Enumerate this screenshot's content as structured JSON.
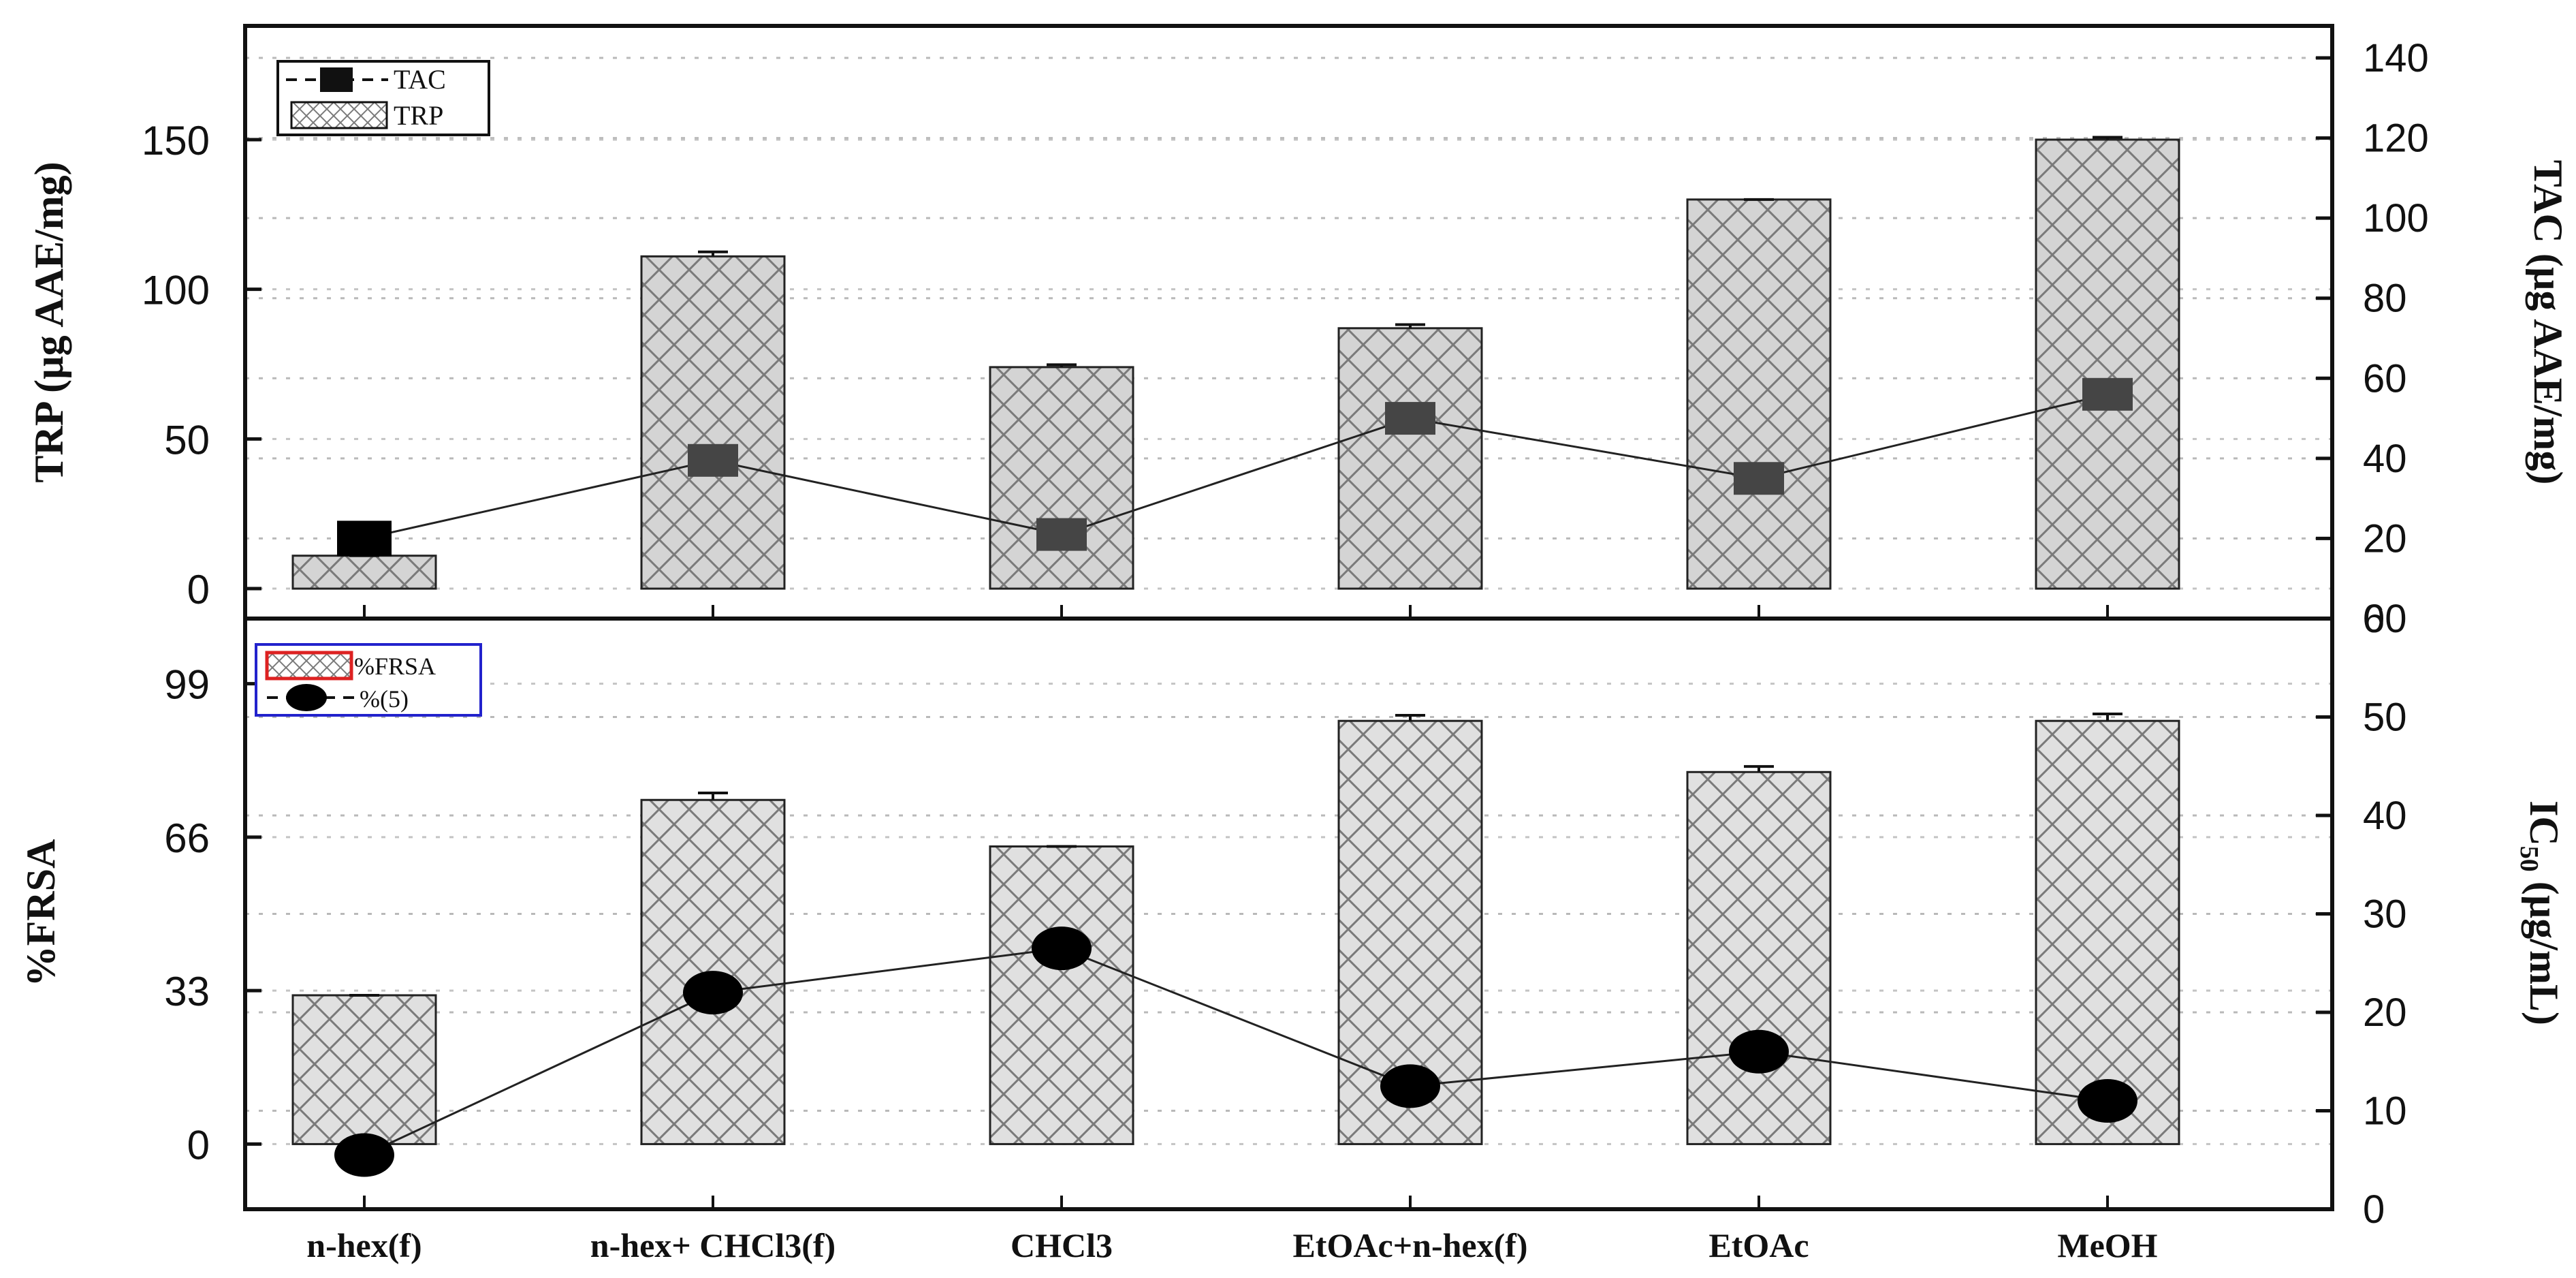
{
  "chart_data": [
    {
      "type": "bar",
      "categories": [
        "n-hex(f)",
        "n-hex+ CHCl3(f)",
        "CHCl3",
        "EtOAc+n-hex(f)",
        "EtOAc",
        "MeOH"
      ],
      "ylabel": "TRP (µg AAE/mg)",
      "y2label": "TAC (µg AAE/mg)",
      "ylim": [
        -10,
        188
      ],
      "y2lim": [
        0,
        148
      ],
      "yticks": [
        0,
        50,
        100,
        150
      ],
      "y2ticks": [
        0,
        20,
        40,
        60,
        80,
        100,
        120,
        140
      ],
      "grid": true,
      "legend_position": "top-left",
      "series": [
        {
          "name": "TRP",
          "kind": "bar",
          "axis": "left",
          "values": [
            11,
            111,
            74,
            87,
            130,
            150
          ],
          "errors": [
            0,
            1.5,
            0.8,
            1.2,
            0,
            0.8
          ]
        },
        {
          "name": "TAC",
          "kind": "line",
          "axis": "right",
          "values": [
            20,
            39.5,
            21,
            50,
            35,
            56
          ]
        }
      ],
      "legend": [
        "TAC",
        "TRP"
      ],
      "colors": {
        "bar_fill": "#d4d4d4",
        "marker": "#454545",
        "first_marker": "#000000",
        "line": "#222222"
      }
    },
    {
      "type": "bar",
      "categories": [
        "n-hex(f)",
        "n-hex+ CHCl3(f)",
        "CHCl3",
        "EtOAc+n-hex(f)",
        "EtOAc",
        "MeOH"
      ],
      "ylabel": "%FRSA",
      "y2label": "IC50 (µg/mL)",
      "ylim": [
        -14,
        113
      ],
      "y2lim": [
        0,
        60
      ],
      "yticks": [
        0,
        33,
        66,
        99
      ],
      "y2ticks": [
        0,
        10,
        20,
        30,
        40,
        50,
        60
      ],
      "grid": true,
      "legend_position": "top-left",
      "series": [
        {
          "name": "%FRSA",
          "kind": "bar",
          "axis": "left",
          "values": [
            32,
            74,
            64,
            91,
            80,
            91
          ],
          "errors": [
            0,
            1.5,
            0,
            1.2,
            1.2,
            1.5
          ]
        },
        {
          "name": "%(5)",
          "kind": "line",
          "axis": "right",
          "values": [
            5.5,
            22,
            26.5,
            12.5,
            16,
            11
          ]
        }
      ],
      "legend": [
        "%FRSA",
        "%(5)"
      ],
      "colors": {
        "bar_fill": "#e0e0e0",
        "marker": "#000000",
        "line": "#222222",
        "legend_box": "#2222cc",
        "legend_swatch_border": "#dd2222"
      }
    }
  ],
  "labels": {
    "top_left_axis": "TRP (µg AAE/mg)",
    "top_right_axis": "TAC (µg AAE/mg)",
    "bottom_left_axis": "%FRSA",
    "bottom_right_axis_main": "IC",
    "bottom_right_axis_sub": "50",
    "bottom_right_axis_unit": "(µg/mL)",
    "top_legend_tac": "TAC",
    "top_legend_trp": "TRP",
    "bottom_legend_frsa": "%FRSA",
    "bottom_legend_ic": "%(5)"
  }
}
